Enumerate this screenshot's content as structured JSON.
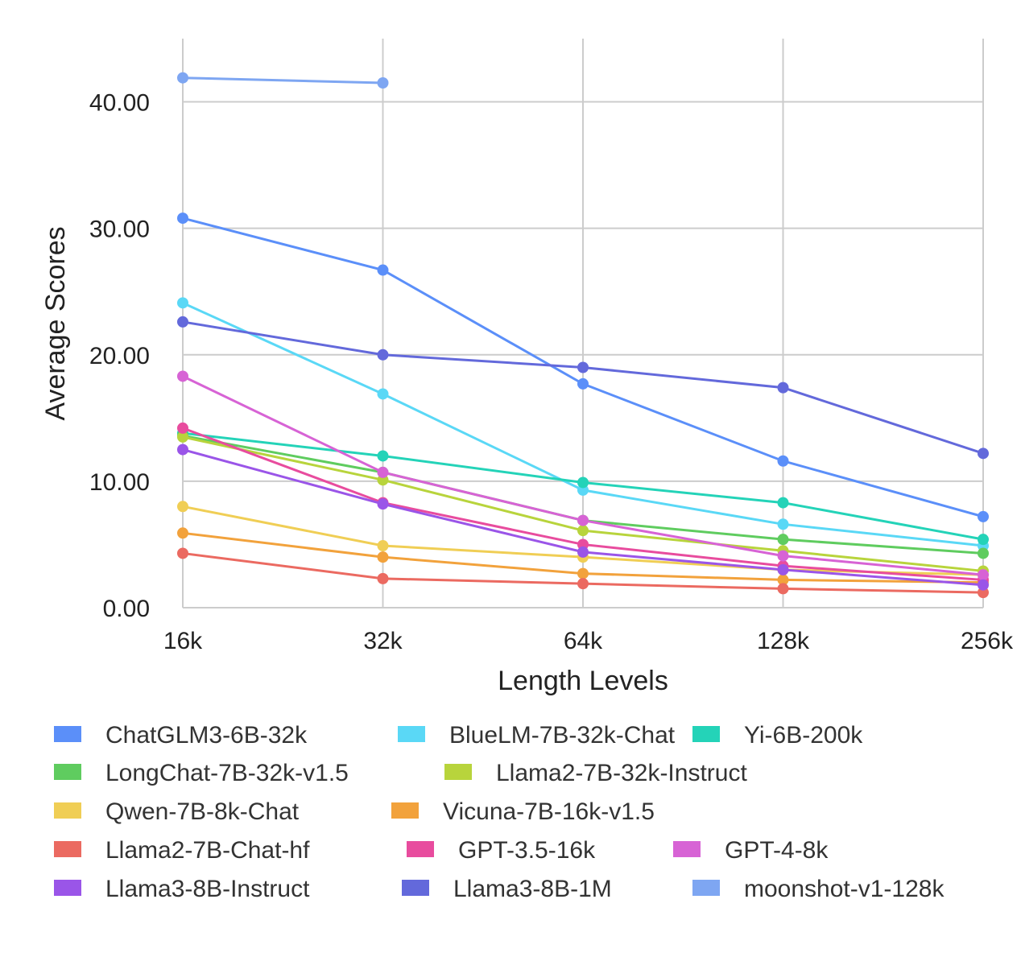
{
  "chart_data": {
    "type": "line",
    "title": "",
    "xlabel": "Length Levels",
    "ylabel": "Average Scores",
    "categories": [
      "16k",
      "32k",
      "64k",
      "128k",
      "256k"
    ],
    "ylim": [
      0,
      45
    ],
    "yticks": [
      "0.00",
      "10.00",
      "20.00",
      "30.00",
      "40.00"
    ],
    "grid": true,
    "legend_position": "bottom",
    "series": [
      {
        "name": "ChatGLM3-6B-32k",
        "color": "#5B8FF9",
        "values": [
          30.8,
          26.7,
          17.7,
          11.6,
          7.2
        ]
      },
      {
        "name": "BlueLM-7B-32k-Chat",
        "color": "#5AD8F6",
        "values": [
          24.1,
          16.9,
          9.3,
          6.6,
          4.9
        ]
      },
      {
        "name": "Yi-6B-200k",
        "color": "#24D3B8",
        "values": [
          13.8,
          12.0,
          9.9,
          8.3,
          5.4
        ]
      },
      {
        "name": "LongChat-7B-32k-v1.5",
        "color": "#5FCC5F",
        "values": [
          13.6,
          10.7,
          6.9,
          5.4,
          4.3
        ]
      },
      {
        "name": "Llama2-7B-32k-Instruct",
        "color": "#B8D43C",
        "values": [
          13.5,
          10.1,
          6.1,
          4.5,
          2.9
        ]
      },
      {
        "name": "Qwen-7B-8k-Chat",
        "color": "#F0CE55",
        "values": [
          8.0,
          4.9,
          4.0,
          3.0,
          2.6
        ]
      },
      {
        "name": "Vicuna-7B-16k-v1.5",
        "color": "#F2A23C",
        "values": [
          5.9,
          4.0,
          2.7,
          2.2,
          2.0
        ]
      },
      {
        "name": "Llama2-7B-Chat-hf",
        "color": "#EB6A61",
        "values": [
          4.3,
          2.3,
          1.9,
          1.5,
          1.2
        ]
      },
      {
        "name": "GPT-3.5-16k",
        "color": "#E84C9E",
        "values": [
          14.2,
          8.3,
          5.0,
          3.3,
          2.2
        ]
      },
      {
        "name": "GPT-4-8k",
        "color": "#D763D5",
        "values": [
          18.3,
          10.7,
          6.9,
          4.1,
          2.6
        ]
      },
      {
        "name": "Llama3-8B-Instruct",
        "color": "#9A55E8",
        "values": [
          12.5,
          8.2,
          4.4,
          3.0,
          1.8
        ]
      },
      {
        "name": "Llama3-8B-1M",
        "color": "#6369DB",
        "values": [
          22.6,
          20.0,
          19.0,
          17.4,
          12.2
        ]
      },
      {
        "name": "moonshot-v1-128k",
        "color": "#7EA6F2",
        "values": [
          41.9,
          41.5,
          null,
          null,
          null
        ]
      }
    ]
  }
}
